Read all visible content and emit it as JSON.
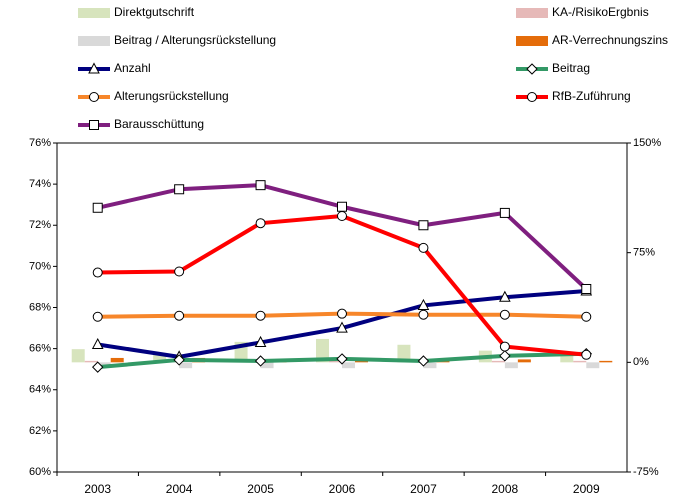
{
  "chart_data": {
    "type": "combo",
    "categories": [
      "2003",
      "2004",
      "2005",
      "2006",
      "2007",
      "2008",
      "2009"
    ],
    "ylim": [
      60,
      76
    ],
    "yticks": [
      {
        "value": 60,
        "label": "60%"
      },
      {
        "value": 62,
        "label": "62%"
      },
      {
        "value": 64,
        "label": "64%"
      },
      {
        "value": 66,
        "label": "66%"
      },
      {
        "value": 68,
        "label": "68%"
      },
      {
        "value": 70,
        "label": "70%"
      },
      {
        "value": 72,
        "label": "72%"
      },
      {
        "value": 74,
        "label": "74%"
      },
      {
        "value": 76,
        "label": "76%"
      }
    ],
    "y2lim": [
      -75,
      150
    ],
    "y2ticks": [
      {
        "value": -75,
        "label": "-75%"
      },
      {
        "value": 0,
        "label": "0%"
      },
      {
        "value": 75,
        "label": "75%"
      },
      {
        "value": 150,
        "label": "150%"
      }
    ],
    "series": [
      {
        "name": "Direktgutschrift",
        "type": "bar",
        "axis": "y2",
        "color": "#d7e4bd",
        "values": [
          9,
          5,
          14,
          16,
          12,
          8,
          7
        ]
      },
      {
        "name": "KA-/RisikoErgbnis",
        "type": "bar",
        "axis": "y2",
        "color": "#e6b9b8",
        "values": [
          1,
          1,
          1,
          1,
          1,
          1,
          1
        ]
      },
      {
        "name": "Beitrag / Alterungsrückstellung",
        "type": "bar",
        "axis": "y2",
        "color": "#d9d9d9",
        "values": [
          -3,
          -4,
          -4,
          -4,
          -4,
          -4,
          -4
        ]
      },
      {
        "name": "AR-Verrechnungszins",
        "type": "bar",
        "axis": "y2",
        "color": "#e46c0a",
        "values": [
          3,
          3,
          2,
          3,
          2,
          2,
          1
        ]
      },
      {
        "name": "Anzahl",
        "type": "line",
        "marker": "triangle",
        "color": "#00007f",
        "values": [
          66.2,
          65.6,
          66.3,
          67.0,
          68.1,
          68.5,
          68.8
        ]
      },
      {
        "name": "Beitrag",
        "type": "line",
        "marker": "diamond",
        "color": "#339966",
        "values": [
          65.1,
          65.45,
          65.4,
          65.5,
          65.4,
          65.65,
          65.75
        ]
      },
      {
        "name": "Alterungsrückstellung",
        "type": "line",
        "marker": "circle",
        "color": "#f7862a",
        "values": [
          67.55,
          67.6,
          67.6,
          67.7,
          67.65,
          67.65,
          67.55
        ]
      },
      {
        "name": "RfB-Zuführung",
        "type": "line",
        "marker": "circle",
        "color": "#ff0000",
        "values": [
          69.7,
          69.75,
          72.1,
          72.45,
          70.9,
          66.1,
          65.7
        ]
      },
      {
        "name": "Barausschüttung",
        "type": "line",
        "marker": "square",
        "color": "#7f1f7f",
        "values": [
          72.85,
          73.75,
          73.95,
          72.9,
          72.0,
          72.6,
          68.9
        ]
      }
    ]
  }
}
